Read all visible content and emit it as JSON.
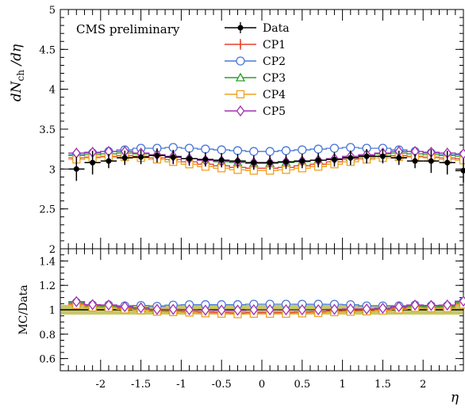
{
  "chart_data": {
    "type": "line",
    "title": "",
    "annotation": "CMS preliminary",
    "xlabel": "η",
    "xlim": [
      -2.5,
      2.5
    ],
    "x_ticks": [
      -2,
      -1.5,
      -1,
      -0.5,
      0,
      0.5,
      1,
      1.5,
      2
    ],
    "x_tick_labels": [
      "-2",
      "-1.5",
      "-1",
      "-0.5",
      "0",
      "0.5",
      "1",
      "1.5",
      "2"
    ],
    "x": [
      -2.3,
      -2.1,
      -1.9,
      -1.7,
      -1.5,
      -1.3,
      -1.1,
      -0.9,
      -0.7,
      -0.5,
      -0.3,
      -0.1,
      0.1,
      0.3,
      0.5,
      0.7,
      0.9,
      1.1,
      1.3,
      1.5,
      1.7,
      1.9,
      2.1,
      2.3,
      2.5
    ],
    "main": {
      "ylabel_main": "dN",
      "ylabel_sub": "ch",
      "ylabel_tail": " /dη",
      "ylim": [
        2,
        5
      ],
      "y_ticks": [
        2,
        2.5,
        3,
        3.5,
        4,
        4.5,
        5
      ],
      "y_tick_labels": [
        "2",
        "2.5",
        "3",
        "3.5",
        "4",
        "4.5",
        "5"
      ],
      "legend_position": "top-center",
      "series": [
        {
          "name": "Data",
          "color": "#000000",
          "marker": "dot",
          "values": [
            3.0,
            3.08,
            3.1,
            3.14,
            3.15,
            3.17,
            3.15,
            3.13,
            3.12,
            3.11,
            3.1,
            3.08,
            3.08,
            3.09,
            3.1,
            3.11,
            3.12,
            3.14,
            3.16,
            3.16,
            3.14,
            3.1,
            3.1,
            3.08,
            2.98
          ]
        },
        {
          "name": "CP1",
          "color": "#e8402a",
          "marker": "cross",
          "values": [
            3.14,
            3.15,
            3.16,
            3.17,
            3.16,
            3.14,
            3.12,
            3.09,
            3.06,
            3.04,
            3.02,
            3.01,
            3.01,
            3.02,
            3.04,
            3.06,
            3.09,
            3.12,
            3.14,
            3.16,
            3.17,
            3.16,
            3.15,
            3.14,
            3.13
          ]
        },
        {
          "name": "CP2",
          "color": "#4a78d8",
          "marker": "circle",
          "values": [
            3.18,
            3.2,
            3.22,
            3.24,
            3.26,
            3.26,
            3.27,
            3.26,
            3.25,
            3.24,
            3.23,
            3.22,
            3.22,
            3.23,
            3.24,
            3.25,
            3.26,
            3.27,
            3.26,
            3.26,
            3.24,
            3.22,
            3.2,
            3.18,
            3.18
          ]
        },
        {
          "name": "CP3",
          "color": "#2aa02a",
          "marker": "triangle",
          "values": [
            3.17,
            3.18,
            3.19,
            3.2,
            3.19,
            3.17,
            3.15,
            3.13,
            3.11,
            3.09,
            3.08,
            3.07,
            3.07,
            3.08,
            3.09,
            3.11,
            3.13,
            3.15,
            3.17,
            3.19,
            3.2,
            3.19,
            3.18,
            3.17,
            3.16
          ]
        },
        {
          "name": "CP4",
          "color": "#f0a020",
          "marker": "square",
          "values": [
            3.12,
            3.14,
            3.15,
            3.15,
            3.14,
            3.12,
            3.09,
            3.06,
            3.03,
            3.01,
            2.99,
            2.98,
            2.98,
            2.99,
            3.01,
            3.03,
            3.06,
            3.09,
            3.12,
            3.14,
            3.15,
            3.15,
            3.14,
            3.12,
            3.11
          ]
        },
        {
          "name": "CP5",
          "color": "#a030b0",
          "marker": "diamond",
          "values": [
            3.2,
            3.21,
            3.22,
            3.22,
            3.2,
            3.18,
            3.16,
            3.13,
            3.11,
            3.1,
            3.09,
            3.08,
            3.08,
            3.09,
            3.1,
            3.11,
            3.13,
            3.16,
            3.18,
            3.2,
            3.22,
            3.22,
            3.21,
            3.2,
            3.19
          ]
        }
      ]
    },
    "ratio": {
      "ylabel": "MC/Data",
      "ylim": [
        0.5,
        1.5
      ],
      "y_ticks": [
        0.6,
        0.8,
        1,
        1.2,
        1.4
      ],
      "y_tick_labels": [
        "0.6",
        "0.8",
        "1",
        "1.2",
        "1.4"
      ],
      "band": {
        "low": 0.96,
        "high": 1.04,
        "color": "#b5b530"
      }
    }
  }
}
